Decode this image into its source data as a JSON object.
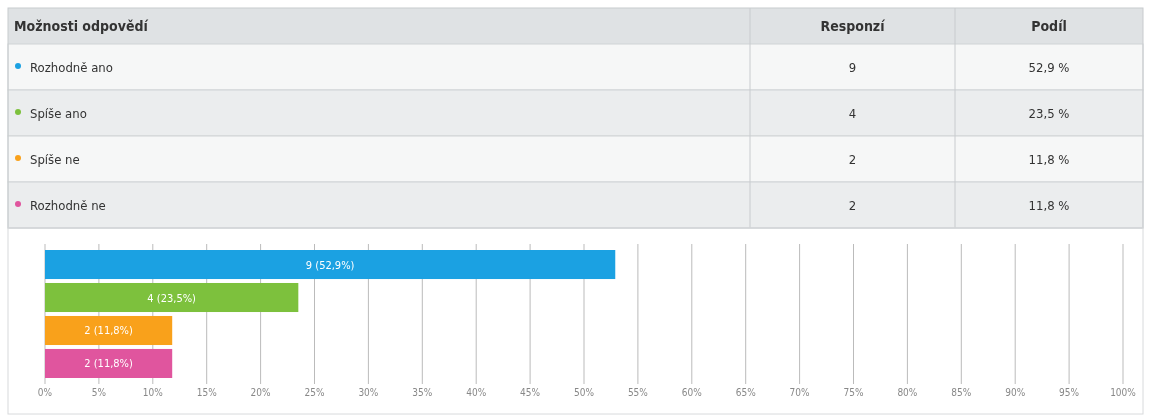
{
  "chart_data": {
    "type": "bar",
    "orientation": "horizontal",
    "legend": "top",
    "categories": [
      null,
      null,
      null,
      null
    ],
    "series": [
      {
        "name": "Rozhodně ano",
        "color": "#1ba1e2",
        "values": [
          52.9,
          null,
          null,
          null
        ],
        "value_labels": [
          "9 (52,9%)",
          null,
          null,
          null
        ]
      },
      {
        "name": "Spíše ano",
        "color": "#7dc13d",
        "values": [
          null,
          23.5,
          null,
          null
        ],
        "value_labels": [
          null,
          "4 (23,5%)",
          null,
          null
        ]
      },
      {
        "name": "Spíše ne",
        "color": "#f9a11b",
        "values": [
          null,
          null,
          11.8,
          null
        ],
        "value_labels": [
          null,
          null,
          "2 (11,8%)",
          null
        ]
      },
      {
        "name": "Rozhodně ne",
        "color": "#e0559e",
        "values": [
          null,
          null,
          null,
          11.8
        ],
        "value_labels": [
          null,
          null,
          null,
          "2 (11,8%)"
        ]
      }
    ],
    "xlim": [
      0,
      100
    ],
    "xticks": [
      {
        "value": 0,
        "label": "0%"
      },
      {
        "value": 5,
        "label": "5%"
      },
      {
        "value": 10,
        "label": "10%"
      },
      {
        "value": 15,
        "label": "15%"
      },
      {
        "value": 20,
        "label": "20%"
      },
      {
        "value": 25,
        "label": "25%"
      },
      {
        "value": 30,
        "label": "30%"
      },
      {
        "value": 35,
        "label": "35%"
      },
      {
        "value": 40,
        "label": "40%"
      },
      {
        "value": 45,
        "label": "45%"
      },
      {
        "value": 50,
        "label": "50%"
      },
      {
        "value": 55,
        "label": "55%"
      },
      {
        "value": 60,
        "label": "60%"
      },
      {
        "value": 65,
        "label": "65%"
      },
      {
        "value": 70,
        "label": "70%"
      },
      {
        "value": 75,
        "label": "75%"
      },
      {
        "value": 80,
        "label": "80%"
      },
      {
        "value": 85,
        "label": "85%"
      },
      {
        "value": 90,
        "label": "90%"
      },
      {
        "value": 95,
        "label": "95%"
      },
      {
        "value": 100,
        "label": "100%"
      }
    ],
    "grid": "x",
    "annotations": [
      "Možnosti odpovědí",
      "Responzí",
      "Podíl",
      "9",
      "52,9 %",
      "4",
      "23,5 %",
      "2",
      "11,8 %",
      "2",
      "11,8 %"
    ]
  }
}
